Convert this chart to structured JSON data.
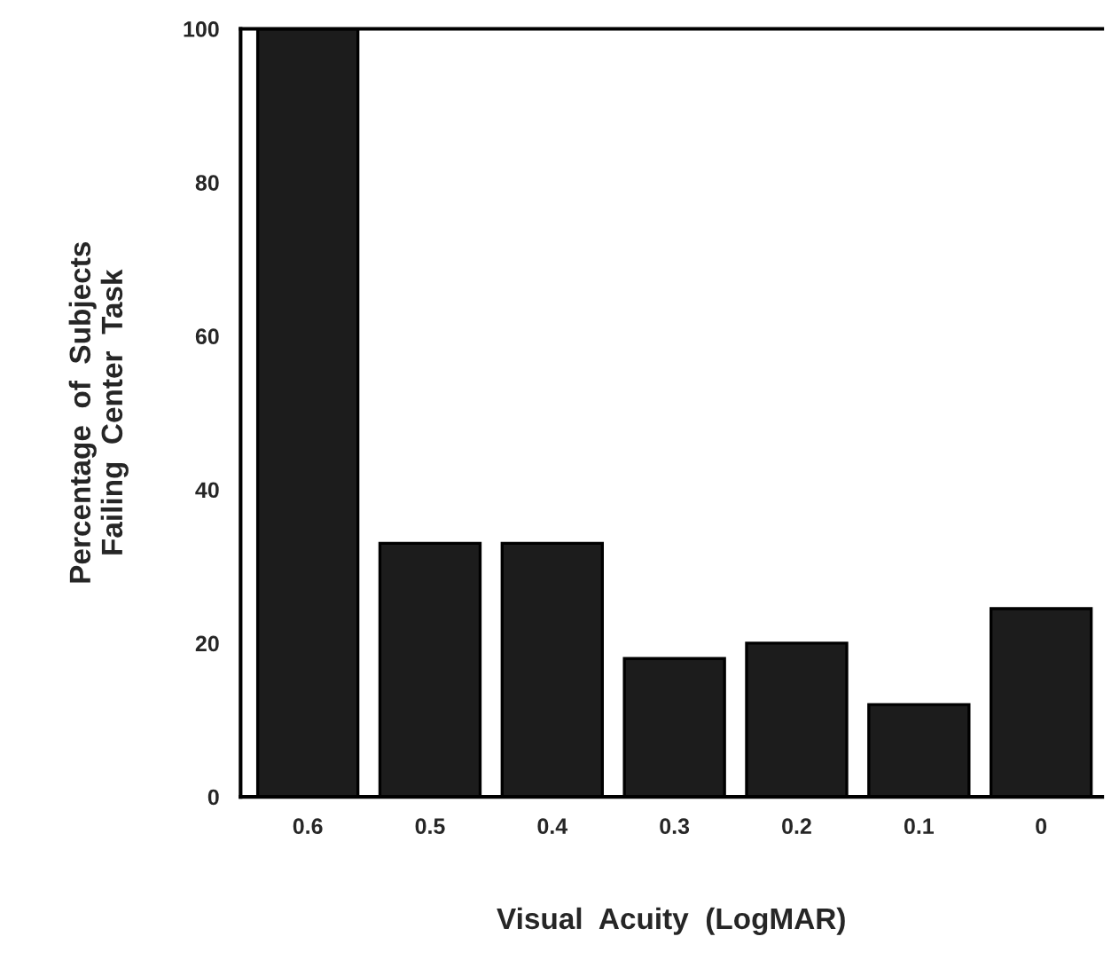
{
  "chart_data": {
    "type": "bar",
    "xlabel": "Visual  Acuity  (LogMAR)",
    "ylabel": "Percentage  of  Subjects\nFailing  Center  Task",
    "categories": [
      "0.6",
      "0.5",
      "0.4",
      "0.3",
      "0.2",
      "0.1",
      "0"
    ],
    "values": [
      100,
      33,
      33,
      18,
      20,
      12,
      24.5
    ],
    "color": "#1c1c1c",
    "ylim": [
      0,
      100
    ],
    "yticks": [
      0,
      20,
      40,
      60,
      80,
      100
    ],
    "grid": false,
    "legend": false
  }
}
